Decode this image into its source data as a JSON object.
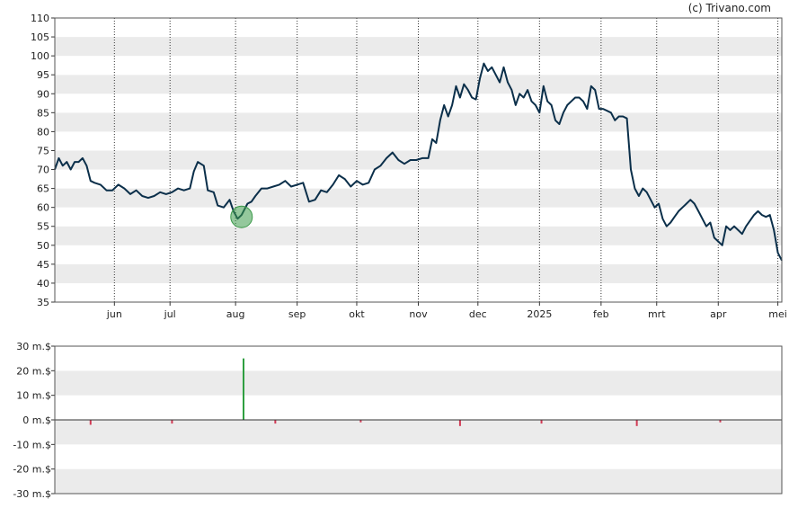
{
  "credit": "(c) Trivano.com",
  "chart_data": [
    {
      "type": "line",
      "title": "",
      "xlabel": "",
      "ylabel": "",
      "ylim": [
        35,
        110
      ],
      "yticks": [
        110,
        105,
        100,
        95,
        90,
        85,
        80,
        75,
        70,
        65,
        60,
        55,
        50,
        45,
        40,
        35
      ],
      "xlim": [
        0,
        366
      ],
      "xticks": [
        {
          "label": "jun",
          "x": 30
        },
        {
          "label": "jul",
          "x": 58
        },
        {
          "label": "aug",
          "x": 91
        },
        {
          "label": "sep",
          "x": 122
        },
        {
          "label": "okt",
          "x": 152
        },
        {
          "label": "nov",
          "x": 183
        },
        {
          "label": "dec",
          "x": 213
        },
        {
          "label": "2025",
          "x": 244
        },
        {
          "label": "feb",
          "x": 275
        },
        {
          "label": "mrt",
          "x": 303
        },
        {
          "label": "apr",
          "x": 334
        },
        {
          "label": "mei",
          "x": 364
        }
      ],
      "grid": "alternating horizontal bands, dotted vertical month lines",
      "line_color": "#0b2f4a",
      "series": [
        {
          "points": [
            [
              0,
              70
            ],
            [
              2,
              73
            ],
            [
              4,
              71
            ],
            [
              6,
              72
            ],
            [
              8,
              70
            ],
            [
              10,
              72
            ],
            [
              12,
              72
            ],
            [
              14,
              73
            ],
            [
              16,
              71
            ],
            [
              18,
              67
            ],
            [
              20,
              66.5
            ],
            [
              23,
              66
            ],
            [
              26,
              64.5
            ],
            [
              29,
              64.5
            ],
            [
              32,
              66
            ],
            [
              35,
              65
            ],
            [
              38,
              63.5
            ],
            [
              41,
              64.5
            ],
            [
              44,
              63
            ],
            [
              47,
              62.5
            ],
            [
              50,
              63
            ],
            [
              53,
              64
            ],
            [
              56,
              63.5
            ],
            [
              59,
              64
            ],
            [
              62,
              65
            ],
            [
              65,
              64.5
            ],
            [
              68,
              65
            ],
            [
              70,
              69.5
            ],
            [
              72,
              72
            ],
            [
              75,
              71
            ],
            [
              77,
              64.5
            ],
            [
              80,
              64
            ],
            [
              82,
              60.5
            ],
            [
              85,
              60
            ],
            [
              88,
              62
            ],
            [
              90,
              59
            ],
            [
              92,
              57
            ],
            [
              94,
              58
            ],
            [
              97,
              61
            ],
            [
              99,
              61.5
            ],
            [
              101,
              63
            ],
            [
              104,
              65
            ],
            [
              107,
              65
            ],
            [
              110,
              65.5
            ],
            [
              113,
              66
            ],
            [
              116,
              67
            ],
            [
              119,
              65.5
            ],
            [
              122,
              66
            ],
            [
              125,
              66.5
            ],
            [
              128,
              61.5
            ],
            [
              131,
              62
            ],
            [
              134,
              64.5
            ],
            [
              137,
              64
            ],
            [
              140,
              66
            ],
            [
              143,
              68.5
            ],
            [
              146,
              67.5
            ],
            [
              149,
              65.5
            ],
            [
              152,
              67
            ],
            [
              155,
              66
            ],
            [
              158,
              66.5
            ],
            [
              161,
              70
            ],
            [
              164,
              71
            ],
            [
              167,
              73
            ],
            [
              170,
              74.5
            ],
            [
              173,
              72.5
            ],
            [
              176,
              71.5
            ],
            [
              179,
              72.5
            ],
            [
              182,
              72.5
            ],
            [
              185,
              73
            ],
            [
              188,
              73
            ],
            [
              190,
              78
            ],
            [
              192,
              77
            ],
            [
              194,
              83
            ],
            [
              196,
              87
            ],
            [
              198,
              84
            ],
            [
              200,
              87
            ],
            [
              202,
              92
            ],
            [
              204,
              89
            ],
            [
              206,
              92.5
            ],
            [
              208,
              91
            ],
            [
              210,
              89
            ],
            [
              212,
              88.5
            ],
            [
              214,
              94
            ],
            [
              216,
              98
            ],
            [
              218,
              96
            ],
            [
              220,
              97
            ],
            [
              222,
              95
            ],
            [
              224,
              93
            ],
            [
              226,
              97
            ],
            [
              228,
              93
            ],
            [
              230,
              91
            ],
            [
              232,
              87
            ],
            [
              234,
              90
            ],
            [
              236,
              89
            ],
            [
              238,
              91
            ],
            [
              240,
              88
            ],
            [
              242,
              87
            ],
            [
              244,
              85
            ],
            [
              246,
              92
            ],
            [
              248,
              88
            ],
            [
              250,
              87
            ],
            [
              252,
              83
            ],
            [
              254,
              82
            ],
            [
              256,
              85
            ],
            [
              258,
              87
            ],
            [
              260,
              88
            ],
            [
              262,
              89
            ],
            [
              264,
              89
            ],
            [
              266,
              88
            ],
            [
              268,
              86
            ],
            [
              270,
              92
            ],
            [
              272,
              91
            ],
            [
              274,
              86
            ],
            [
              276,
              86
            ],
            [
              278,
              85.5
            ],
            [
              280,
              85
            ],
            [
              282,
              83
            ],
            [
              284,
              84
            ],
            [
              286,
              84
            ],
            [
              288,
              83.5
            ],
            [
              290,
              70
            ],
            [
              292,
              65
            ],
            [
              294,
              63
            ],
            [
              296,
              65
            ],
            [
              298,
              64
            ],
            [
              300,
              62
            ],
            [
              302,
              60
            ],
            [
              304,
              61
            ],
            [
              306,
              57
            ],
            [
              308,
              55
            ],
            [
              310,
              56
            ],
            [
              312,
              57.5
            ],
            [
              314,
              59
            ],
            [
              316,
              60
            ],
            [
              318,
              61
            ],
            [
              320,
              62
            ],
            [
              322,
              61
            ],
            [
              324,
              59
            ],
            [
              326,
              57
            ],
            [
              328,
              55
            ],
            [
              330,
              56
            ],
            [
              332,
              52
            ],
            [
              334,
              51
            ],
            [
              336,
              50
            ],
            [
              338,
              55
            ],
            [
              340,
              54
            ],
            [
              342,
              55
            ],
            [
              344,
              54
            ],
            [
              346,
              53
            ],
            [
              348,
              55
            ],
            [
              350,
              56.5
            ],
            [
              352,
              58
            ],
            [
              354,
              59
            ],
            [
              356,
              58
            ],
            [
              358,
              57.5
            ],
            [
              360,
              58
            ],
            [
              362,
              54
            ],
            [
              364,
              48
            ],
            [
              366,
              46
            ]
          ]
        }
      ],
      "marker": {
        "x": 94,
        "y": 57.5,
        "color": "#3c9a4a"
      }
    },
    {
      "type": "bar",
      "title": "",
      "xlabel": "",
      "ylabel": "",
      "ylim": [
        -30,
        30
      ],
      "yticks": [
        "30 m.$",
        "20 m.$",
        "10 m.$",
        "0 m.$",
        "-10 m.$",
        "-20 m.$",
        "-30 m.$"
      ],
      "ytick_values": [
        30,
        20,
        10,
        0,
        -10,
        -20,
        -30
      ],
      "xlim": [
        0,
        366
      ],
      "grid": "alternating horizontal bands",
      "positive_color": "#2e9e40",
      "negative_color": "#d23a55",
      "bars": [
        {
          "x": 18,
          "value": -2
        },
        {
          "x": 59,
          "value": -1.5
        },
        {
          "x": 95,
          "value": 25
        },
        {
          "x": 111,
          "value": -1.5
        },
        {
          "x": 154,
          "value": -1
        },
        {
          "x": 204,
          "value": -2.5
        },
        {
          "x": 245,
          "value": -1.5
        },
        {
          "x": 293,
          "value": -2.5
        },
        {
          "x": 335,
          "value": -1
        }
      ]
    }
  ]
}
